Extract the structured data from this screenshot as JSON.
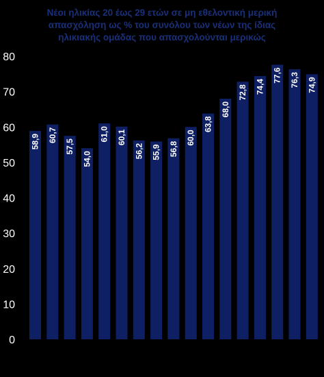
{
  "chart_data": {
    "type": "bar",
    "title_lines": [
      "Νέοι ηλικίας 20 έως 29 ετών σε μη εθελοντική μερική",
      "απασχόληση ως % του συνόλου των νέων της ίδιας",
      "ηλικιακής ομάδας που απασχολούνται μερικώς"
    ],
    "values": [
      58.9,
      60.7,
      57.5,
      54.0,
      61.0,
      60.1,
      56.2,
      55.9,
      56.8,
      60.0,
      63.8,
      68.0,
      72.8,
      74.4,
      77.6,
      76.3,
      74.9
    ],
    "labels": [
      "58,9",
      "60,7",
      "57,5",
      "54,0",
      "61,0",
      "60,1",
      "56,2",
      "55,9",
      "56,8",
      "60,0",
      "63,8",
      "68,0",
      "72,8",
      "74,4",
      "77,6",
      "76,3",
      "74,9"
    ],
    "ylim": [
      0,
      80
    ],
    "yticks": [
      "0",
      "10",
      "20",
      "30",
      "40",
      "50",
      "60",
      "70",
      "80"
    ],
    "grid": false,
    "colors": {
      "bar": "#0f1f63",
      "background": "#000000",
      "title": "#1a2f7a",
      "text": "#ffffff"
    }
  }
}
